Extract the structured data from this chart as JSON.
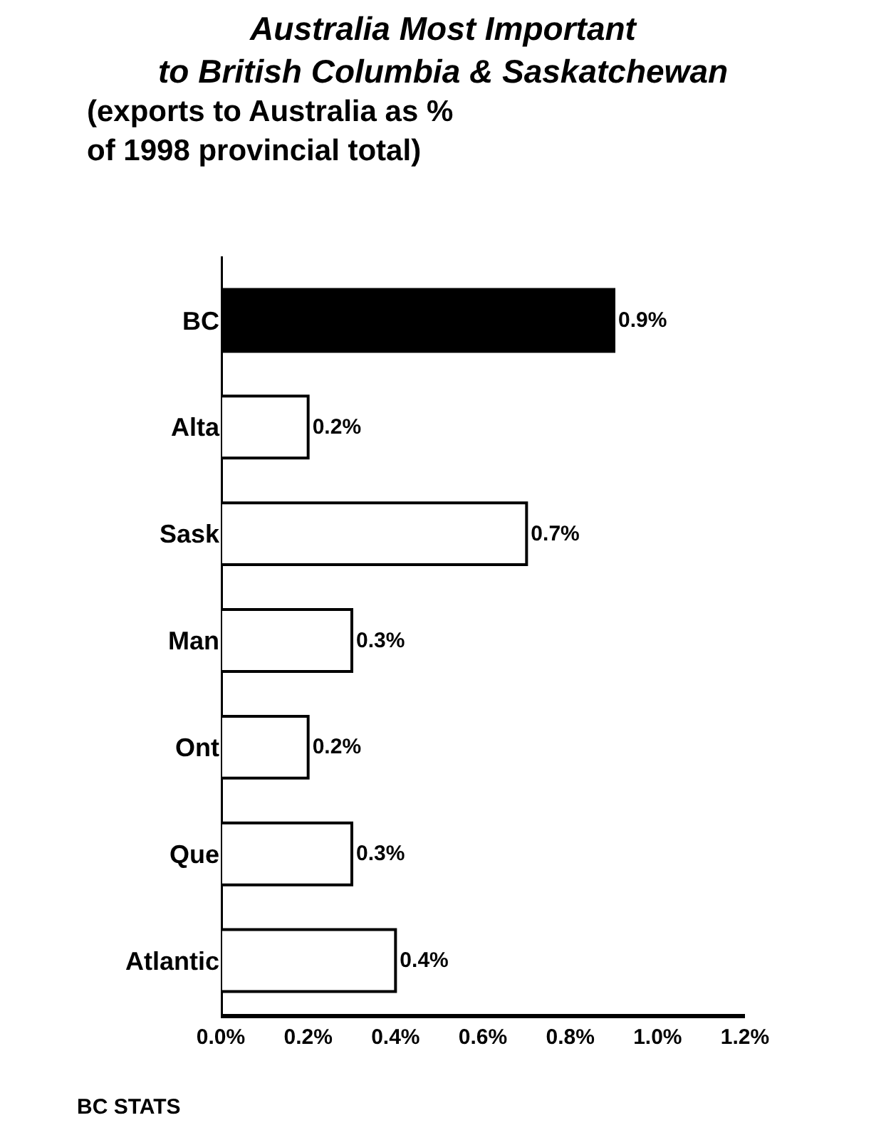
{
  "chart_data": {
    "type": "bar",
    "orientation": "horizontal",
    "title": "Australia Most Important\nto British Columbia & Saskatchewan",
    "subtitle": "(exports to Australia as %\nof 1998 provincial total)",
    "categories": [
      "BC",
      "Alta",
      "Sask",
      "Man",
      "Ont",
      "Que",
      "Atlantic"
    ],
    "values": [
      0.9,
      0.2,
      0.7,
      0.3,
      0.2,
      0.3,
      0.4
    ],
    "colors": [
      "#000000",
      "#ffffff",
      "#ffffff",
      "#ffffff",
      "#ffffff",
      "#ffffff",
      "#ffffff"
    ],
    "value_labels": [
      "0.9%",
      "0.2%",
      "0.7%",
      "0.3%",
      "0.2%",
      "0.3%",
      "0.4%"
    ],
    "xlim": [
      0,
      1.2
    ],
    "xticks": [
      {
        "value": 0,
        "label": "0.0%"
      },
      {
        "value": 0.2,
        "label": "0.2%"
      },
      {
        "value": 0.4,
        "label": "0.4%"
      },
      {
        "value": 0.6,
        "label": "0.6%"
      },
      {
        "value": 0.8,
        "label": "0.8%"
      },
      {
        "value": 1.0,
        "label": "1.0%"
      },
      {
        "value": 1.2,
        "label": "1.2%"
      }
    ],
    "legend": false,
    "annotations": [
      "BC STATS"
    ]
  }
}
